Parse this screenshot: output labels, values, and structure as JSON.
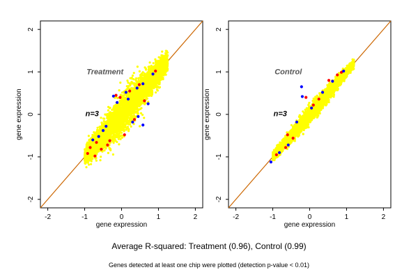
{
  "chart_data": [
    {
      "type": "scatter",
      "panel_label": "Treatment",
      "annotation": "n=3",
      "xlabel": "gene expression",
      "ylabel": "gene expression",
      "xlim": [
        -2.2,
        2.2
      ],
      "ylim": [
        -2.2,
        2.2
      ],
      "x_ticks": [
        -2,
        -1,
        0,
        1,
        2
      ],
      "y_ticks": [
        -2,
        -1,
        0,
        1,
        2
      ],
      "x_tick_labels": [
        "-2",
        "-1",
        "0",
        "1",
        "2"
      ],
      "y_tick_labels": [
        "-2",
        "-1",
        "0",
        "1",
        "2"
      ],
      "grid": false,
      "reference_line": {
        "x": [
          -2.2,
          2.2
        ],
        "y": [
          -2.2,
          2.2
        ]
      },
      "cloud": {
        "x_range": [
          -1.0,
          1.25
        ],
        "spread": 0.18
      },
      "blue_points": [
        [
          -0.78,
          -0.6
        ],
        [
          -0.62,
          -0.52
        ],
        [
          -0.42,
          -0.28
        ],
        [
          -0.22,
          0.43
        ],
        [
          0.12,
          0.52
        ],
        [
          0.42,
          0.62
        ],
        [
          0.58,
          0.72
        ],
        [
          0.58,
          -0.25
        ],
        [
          0.45,
          -0.05
        ],
        [
          0.85,
          0.95
        ],
        [
          -0.12,
          0.28
        ],
        [
          0.18,
          0.36
        ],
        [
          0.3,
          -0.18
        ],
        [
          0.72,
          0.25
        ],
        [
          -0.5,
          -0.38
        ]
      ],
      "red_points": [
        [
          -0.92,
          -0.92
        ],
        [
          -0.72,
          -0.98
        ],
        [
          -0.55,
          -0.82
        ],
        [
          -0.32,
          -0.62
        ],
        [
          -0.04,
          0.4
        ],
        [
          0.22,
          0.55
        ],
        [
          0.35,
          -0.12
        ],
        [
          0.62,
          0.32
        ],
        [
          0.92,
          1.02
        ],
        [
          -0.68,
          -0.66
        ],
        [
          -0.15,
          0.45
        ],
        [
          0.08,
          -0.48
        ],
        [
          -0.38,
          -0.72
        ],
        [
          0.48,
          0.7
        ],
        [
          -0.85,
          -0.78
        ]
      ],
      "point_colors": {
        "primary": "#ffff00",
        "secondary": "#ff0000",
        "tertiary": "#0000ff"
      }
    },
    {
      "type": "scatter",
      "panel_label": "Control",
      "annotation": "n=3",
      "xlabel": "gene expression",
      "ylabel": "gene expression",
      "xlim": [
        -2.2,
        2.2
      ],
      "ylim": [
        -2.2,
        2.2
      ],
      "x_ticks": [
        -2,
        -1,
        0,
        1,
        2
      ],
      "y_ticks": [
        -2,
        -1,
        0,
        1,
        2
      ],
      "x_tick_labels": [
        "-2",
        "-1",
        "0",
        "1",
        "2"
      ],
      "y_tick_labels": [
        "-2",
        "-1",
        "0",
        "1",
        "2"
      ],
      "grid": false,
      "reference_line": {
        "x": [
          -2.2,
          2.2
        ],
        "y": [
          -2.2,
          2.2
        ]
      },
      "cloud": {
        "x_range": [
          -1.0,
          1.2
        ],
        "spread": 0.08
      },
      "blue_points": [
        [
          -1.05,
          -1.12
        ],
        [
          -0.82,
          -0.9
        ],
        [
          -0.22,
          0.65
        ],
        [
          -0.2,
          0.42
        ],
        [
          0.35,
          0.52
        ],
        [
          0.92,
          1.02
        ],
        [
          -0.58,
          -0.72
        ],
        [
          0.05,
          0.15
        ],
        [
          0.62,
          0.78
        ],
        [
          -0.35,
          -0.18
        ]
      ],
      "red_points": [
        [
          -0.9,
          -0.95
        ],
        [
          -0.65,
          -0.78
        ],
        [
          -0.45,
          -0.56
        ],
        [
          -0.1,
          0.4
        ],
        [
          0.25,
          0.36
        ],
        [
          0.52,
          0.8
        ],
        [
          0.75,
          0.93
        ],
        [
          -0.6,
          -0.48
        ],
        [
          0.1,
          0.22
        ],
        [
          0.86,
          0.99
        ]
      ],
      "point_colors": {
        "primary": "#ffff00",
        "secondary": "#ff0000",
        "tertiary": "#0000ff"
      }
    }
  ],
  "footer": {
    "main_text": "Average R-squared: Treatment (0.96), Control (0.99)",
    "subtext": "Genes detected at least one chip were plotted (detection p-value < 0.01)"
  },
  "colors": {
    "reference_line": "#cc6600",
    "axes": "#000000",
    "panel_label": "#555555",
    "annotation": "#000000",
    "background": "#ffffff"
  }
}
